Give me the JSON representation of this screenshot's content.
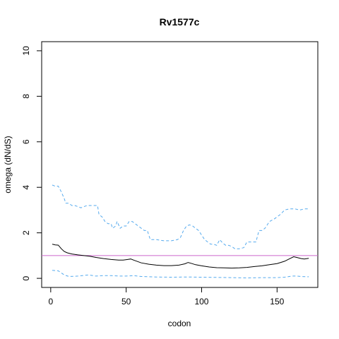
{
  "chart_data": {
    "type": "line",
    "title": "Rv1577c",
    "xlabel": "codon",
    "ylabel": "omega (dN/dS)",
    "xlim": [
      -6,
      177
    ],
    "ylim": [
      -0.4,
      10.4
    ],
    "xticks": [
      0,
      50,
      100,
      150
    ],
    "yticks": [
      0,
      2,
      4,
      6,
      8,
      10
    ],
    "grid": false,
    "reference_line": {
      "y": 1,
      "color": "#CC66CC"
    },
    "series": [
      {
        "role": "estimate",
        "color": "#000000",
        "style": "solid",
        "x": [
          1,
          3,
          5,
          7,
          9,
          11,
          14,
          18,
          22,
          26,
          30,
          35,
          40,
          45,
          48,
          51,
          53,
          55,
          60,
          65,
          70,
          75,
          80,
          85,
          89,
          91,
          93,
          96,
          100,
          105,
          110,
          115,
          120,
          125,
          130,
          135,
          140,
          145,
          150,
          155,
          158,
          161,
          163,
          166,
          168,
          171
        ],
        "y": [
          1.5,
          1.47,
          1.46,
          1.3,
          1.18,
          1.12,
          1.07,
          1.03,
          1.0,
          0.97,
          0.92,
          0.87,
          0.83,
          0.8,
          0.8,
          0.83,
          0.85,
          0.8,
          0.68,
          0.62,
          0.58,
          0.56,
          0.56,
          0.58,
          0.64,
          0.7,
          0.66,
          0.6,
          0.55,
          0.5,
          0.47,
          0.46,
          0.45,
          0.46,
          0.48,
          0.52,
          0.55,
          0.6,
          0.65,
          0.75,
          0.85,
          0.95,
          0.92,
          0.87,
          0.85,
          0.88
        ]
      },
      {
        "role": "upper bound",
        "color": "#55AAEE",
        "style": "dashed",
        "x": [
          1,
          3,
          5,
          7,
          9,
          10,
          12,
          14,
          16,
          20,
          24,
          25,
          31,
          32,
          34,
          36,
          38,
          40,
          41,
          43,
          44,
          46,
          48,
          50,
          52,
          54,
          56,
          58,
          60,
          62,
          64,
          66,
          70,
          75,
          80,
          84,
          86,
          88,
          90,
          92,
          94,
          96,
          98,
          100,
          102,
          104,
          106,
          108,
          110,
          112,
          114,
          116,
          118,
          120,
          122,
          125,
          128,
          130,
          133,
          136,
          138,
          140,
          142,
          145,
          148,
          150,
          152,
          155,
          158,
          160,
          162,
          165,
          168,
          171
        ],
        "y": [
          4.1,
          4.05,
          4.05,
          3.8,
          3.5,
          3.3,
          3.3,
          3.2,
          3.2,
          3.1,
          3.2,
          3.2,
          3.2,
          2.8,
          2.7,
          2.5,
          2.4,
          2.4,
          2.2,
          2.3,
          2.5,
          2.2,
          2.3,
          2.3,
          2.5,
          2.5,
          2.4,
          2.3,
          2.2,
          2.1,
          2.1,
          1.7,
          1.7,
          1.65,
          1.65,
          1.7,
          1.8,
          2.1,
          2.3,
          2.35,
          2.3,
          2.2,
          2.1,
          1.9,
          1.7,
          1.6,
          1.5,
          1.5,
          1.45,
          1.7,
          1.55,
          1.45,
          1.45,
          1.4,
          1.3,
          1.3,
          1.35,
          1.6,
          1.6,
          1.6,
          2.1,
          2.1,
          2.2,
          2.5,
          2.6,
          2.7,
          2.8,
          3.0,
          3.05,
          3.05,
          3.05,
          3.0,
          3.05,
          3.05
        ]
      },
      {
        "role": "lower bound",
        "color": "#55AAEE",
        "style": "dashed",
        "x": [
          1,
          5,
          9,
          12,
          18,
          25,
          30,
          35,
          40,
          45,
          50,
          55,
          60,
          70,
          80,
          90,
          100,
          110,
          120,
          130,
          140,
          150,
          155,
          160,
          163,
          166,
          171
        ],
        "y": [
          0.35,
          0.33,
          0.15,
          0.08,
          0.1,
          0.15,
          0.1,
          0.12,
          0.12,
          0.1,
          0.1,
          0.12,
          0.08,
          0.06,
          0.05,
          0.06,
          0.05,
          0.04,
          0.03,
          0.02,
          0.03,
          0.03,
          0.05,
          0.1,
          0.1,
          0.08,
          0.07
        ]
      }
    ]
  }
}
